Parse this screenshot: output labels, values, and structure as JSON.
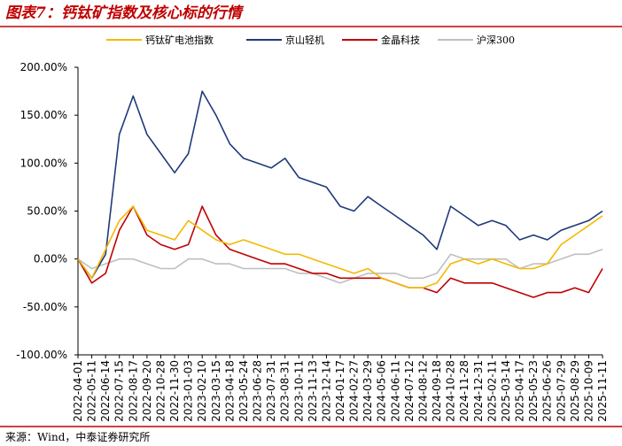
{
  "chart_data": {
    "type": "line",
    "title": "图表7：钙钛矿指数及核心标的行情",
    "source": "来源：Wind，中泰证券研究所",
    "categories": [
      "2022-04-01",
      "2022-05-11",
      "2022-06-14",
      "2022-07-15",
      "2022-08-17",
      "2022-09-20",
      "2022-10-28",
      "2022-11-30",
      "2023-01-03",
      "2023-02-10",
      "2023-03-15",
      "2023-04-18",
      "2023-05-24",
      "2023-06-28",
      "2023-07-31",
      "2023-08-31",
      "2023-10-11",
      "2023-11-13",
      "2023-12-14",
      "2024-01-17",
      "2024-02-27",
      "2024-03-29",
      "2024-05-06",
      "2024-06-11",
      "2024-07-12",
      "2024-08-12",
      "2024-09-18",
      "2024-10-28",
      "2024-11-28",
      "2024-12-31",
      "2025-02-11",
      "2025-03-14",
      "2025-04-17",
      "2025-05-23",
      "2025-06-26",
      "2025-07-29",
      "2025-08-29",
      "2025-10-09",
      "2025-11-11"
    ],
    "series": [
      {
        "name": "钙钛矿电池指数",
        "color": "#f5b800",
        "values": [
          0,
          -20,
          10,
          40,
          55,
          30,
          25,
          20,
          40,
          30,
          20,
          15,
          20,
          15,
          10,
          5,
          5,
          0,
          -5,
          -10,
          -15,
          -10,
          -20,
          -25,
          -30,
          -30,
          -25,
          -5,
          0,
          -5,
          0,
          -5,
          -10,
          -10,
          -5,
          15,
          25,
          35,
          45
        ]
      },
      {
        "name": "京山轻机",
        "color": "#1f3a7a",
        "values": [
          0,
          -20,
          5,
          130,
          170,
          130,
          110,
          90,
          110,
          175,
          150,
          120,
          105,
          100,
          95,
          105,
          85,
          80,
          75,
          55,
          50,
          65,
          55,
          45,
          35,
          25,
          10,
          55,
          45,
          35,
          40,
          35,
          20,
          25,
          20,
          30,
          35,
          40,
          50
        ]
      },
      {
        "name": "金晶科技",
        "color": "#c00000",
        "values": [
          0,
          -25,
          -15,
          30,
          55,
          25,
          15,
          10,
          15,
          55,
          25,
          10,
          5,
          0,
          -5,
          -5,
          -10,
          -15,
          -15,
          -20,
          -20,
          -20,
          -20,
          -25,
          -30,
          -30,
          -35,
          -20,
          -25,
          -25,
          -25,
          -30,
          -35,
          -40,
          -35,
          -35,
          -30,
          -35,
          -10
        ]
      },
      {
        "name": "沪深300",
        "color": "#bfbfbf",
        "values": [
          0,
          -10,
          -5,
          0,
          0,
          -5,
          -10,
          -10,
          0,
          0,
          -5,
          -5,
          -10,
          -10,
          -10,
          -10,
          -15,
          -15,
          -20,
          -25,
          -20,
          -15,
          -15,
          -15,
          -20,
          -20,
          -15,
          5,
          0,
          0,
          0,
          0,
          -10,
          -5,
          -5,
          0,
          5,
          5,
          10
        ]
      }
    ],
    "ylim": [
      -100,
      200
    ],
    "yticks": [
      {
        "value": 200,
        "label": "200.00%"
      },
      {
        "value": 150,
        "label": "150.00%"
      },
      {
        "value": 100,
        "label": "100.00%"
      },
      {
        "value": 50,
        "label": "50.00%"
      },
      {
        "value": 0,
        "label": "0.00%"
      },
      {
        "value": -50,
        "label": "-50.00%"
      },
      {
        "value": -100,
        "label": "-100.00%"
      }
    ],
    "grid": false
  }
}
